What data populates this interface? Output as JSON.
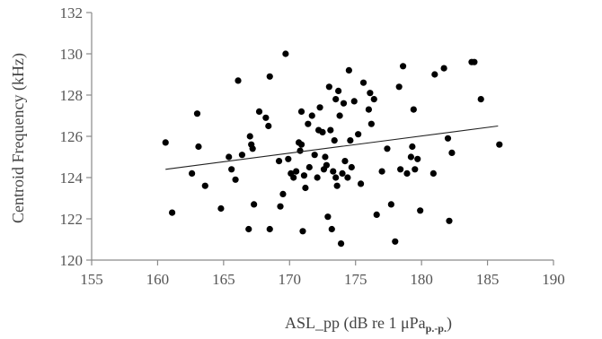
{
  "chart_data": {
    "type": "scatter",
    "title": "",
    "xlabel": "ASL_pp (dB re 1 μPa",
    "xlabel_sub": "p.-p.",
    "xlabel_close": ")",
    "ylabel": "Centroid Frequency (kHz)",
    "xlim": [
      155,
      190
    ],
    "ylim": [
      120,
      132
    ],
    "xticks": [
      "155",
      "160",
      "165",
      "170",
      "175",
      "180",
      "185",
      "190"
    ],
    "yticks": [
      "120",
      "122",
      "124",
      "126",
      "128",
      "130",
      "132"
    ],
    "grid": false,
    "legend": "none",
    "trendline": {
      "x": [
        160.6,
        185.8
      ],
      "y": [
        124.4,
        126.5
      ]
    },
    "points": [
      [
        160.6,
        125.7
      ],
      [
        161.1,
        122.3
      ],
      [
        162.6,
        124.2
      ],
      [
        163.0,
        127.1
      ],
      [
        163.1,
        125.5
      ],
      [
        163.6,
        123.6
      ],
      [
        164.8,
        122.5
      ],
      [
        165.4,
        125.0
      ],
      [
        165.6,
        124.4
      ],
      [
        165.9,
        123.9
      ],
      [
        166.1,
        128.7
      ],
      [
        166.4,
        125.1
      ],
      [
        166.9,
        121.5
      ],
      [
        167.0,
        126.0
      ],
      [
        167.1,
        125.6
      ],
      [
        167.2,
        125.4
      ],
      [
        167.3,
        122.7
      ],
      [
        167.7,
        127.2
      ],
      [
        168.2,
        126.9
      ],
      [
        168.4,
        126.5
      ],
      [
        168.5,
        128.9
      ],
      [
        168.5,
        121.5
      ],
      [
        169.2,
        124.8
      ],
      [
        169.3,
        122.6
      ],
      [
        169.5,
        123.2
      ],
      [
        169.7,
        130.0
      ],
      [
        169.9,
        124.9
      ],
      [
        170.1,
        124.2
      ],
      [
        170.3,
        124.0
      ],
      [
        170.5,
        124.3
      ],
      [
        170.7,
        125.7
      ],
      [
        170.8,
        125.3
      ],
      [
        170.9,
        125.6
      ],
      [
        170.9,
        127.2
      ],
      [
        171.0,
        121.4
      ],
      [
        171.1,
        124.1
      ],
      [
        171.2,
        123.5
      ],
      [
        171.4,
        126.6
      ],
      [
        171.5,
        124.5
      ],
      [
        171.7,
        127.0
      ],
      [
        171.9,
        125.1
      ],
      [
        172.1,
        124.0
      ],
      [
        172.2,
        126.3
      ],
      [
        172.3,
        127.4
      ],
      [
        172.5,
        126.2
      ],
      [
        172.6,
        124.4
      ],
      [
        172.7,
        125.0
      ],
      [
        172.8,
        124.6
      ],
      [
        172.9,
        122.1
      ],
      [
        173.0,
        128.4
      ],
      [
        173.1,
        126.3
      ],
      [
        173.2,
        121.5
      ],
      [
        173.3,
        124.3
      ],
      [
        173.4,
        125.8
      ],
      [
        173.5,
        127.8
      ],
      [
        173.5,
        124.0
      ],
      [
        173.6,
        123.6
      ],
      [
        173.7,
        128.2
      ],
      [
        173.8,
        127.0
      ],
      [
        173.9,
        120.8
      ],
      [
        174.0,
        124.2
      ],
      [
        174.1,
        127.6
      ],
      [
        174.2,
        124.8
      ],
      [
        174.4,
        124.0
      ],
      [
        174.5,
        129.2
      ],
      [
        174.6,
        125.8
      ],
      [
        174.7,
        124.5
      ],
      [
        174.9,
        127.7
      ],
      [
        175.2,
        126.1
      ],
      [
        175.4,
        123.7
      ],
      [
        175.6,
        128.6
      ],
      [
        176.0,
        127.3
      ],
      [
        176.1,
        128.1
      ],
      [
        176.2,
        126.6
      ],
      [
        176.4,
        127.8
      ],
      [
        176.6,
        122.2
      ],
      [
        177.0,
        124.3
      ],
      [
        177.4,
        125.4
      ],
      [
        177.7,
        122.7
      ],
      [
        178.0,
        120.9
      ],
      [
        178.3,
        128.4
      ],
      [
        178.4,
        124.4
      ],
      [
        178.6,
        129.4
      ],
      [
        178.9,
        124.2
      ],
      [
        179.2,
        125.0
      ],
      [
        179.3,
        125.5
      ],
      [
        179.4,
        127.3
      ],
      [
        179.5,
        124.4
      ],
      [
        179.7,
        124.9
      ],
      [
        179.9,
        122.4
      ],
      [
        180.9,
        124.2
      ],
      [
        181.0,
        129.0
      ],
      [
        181.7,
        129.3
      ],
      [
        182.0,
        125.9
      ],
      [
        182.1,
        121.9
      ],
      [
        182.3,
        125.2
      ],
      [
        183.8,
        129.6
      ],
      [
        184.0,
        129.6
      ],
      [
        184.5,
        127.8
      ],
      [
        185.9,
        125.6
      ]
    ]
  }
}
